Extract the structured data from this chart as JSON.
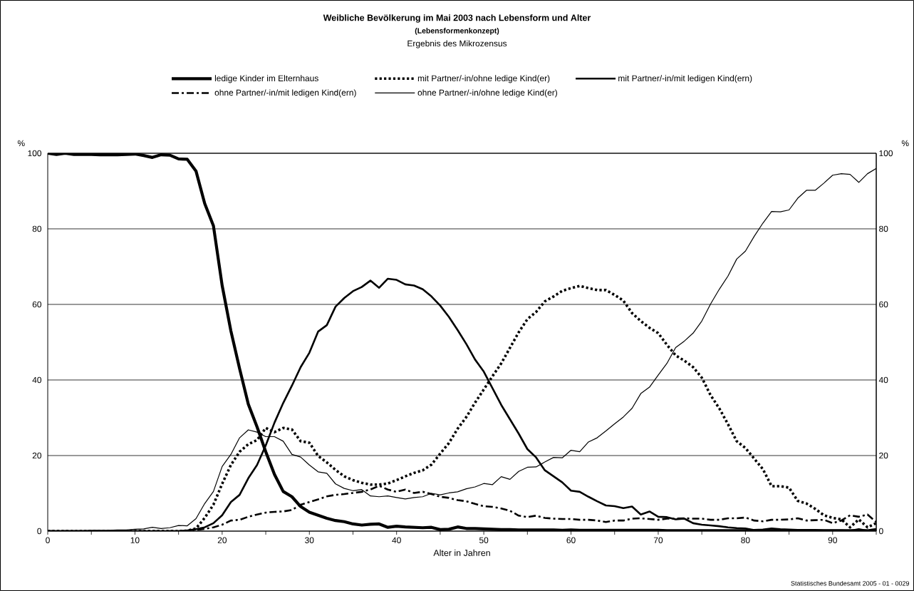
{
  "chart_data": {
    "type": "line",
    "title": "Weibliche Bevölkerung im Mai 2003 nach Lebensform und Alter",
    "subtitle": "(Lebensformenkonzept)",
    "annotations": [
      "Ergebnis des Mikrozensus",
      "Statistisches Bundesamt 2005 - 01 - 0029"
    ],
    "xlabel": "Alter in Jahren",
    "ylabel": "%",
    "y2label": "%",
    "xlim": [
      0,
      95
    ],
    "ylim": [
      0,
      100
    ],
    "y2lim": [
      0,
      100
    ],
    "xticks": [
      0,
      {
        "value": 5,
        "label": null
      },
      10,
      {
        "value": 15,
        "label": null
      },
      20,
      {
        "value": 25,
        "label": null
      },
      30,
      {
        "value": 35,
        "label": null
      },
      40,
      {
        "value": 45,
        "label": null
      },
      50,
      {
        "value": 55,
        "label": null
      },
      60,
      {
        "value": 65,
        "label": null
      },
      70,
      {
        "value": 75,
        "label": null
      },
      80,
      {
        "value": 85,
        "label": null
      },
      90,
      {
        "value": 95,
        "label": null
      }
    ],
    "yticks": [
      0,
      20,
      40,
      60,
      80,
      100
    ],
    "y2ticks": [
      0,
      20,
      40,
      60,
      80,
      100
    ],
    "grid": "y",
    "legend": "top",
    "marker": "none",
    "x": [
      0,
      1,
      2,
      3,
      4,
      5,
      6,
      7,
      8,
      9,
      10,
      11,
      12,
      13,
      14,
      15,
      16,
      17,
      18,
      19,
      20,
      21,
      22,
      23,
      24,
      25,
      26,
      27,
      28,
      29,
      30,
      31,
      32,
      33,
      34,
      35,
      36,
      37,
      38,
      39,
      40,
      41,
      42,
      43,
      44,
      45,
      46,
      47,
      48,
      49,
      50,
      51,
      52,
      53,
      54,
      55,
      56,
      57,
      58,
      59,
      60,
      61,
      62,
      63,
      64,
      65,
      66,
      67,
      68,
      69,
      70,
      71,
      72,
      73,
      74,
      75,
      76,
      77,
      78,
      79,
      80,
      81,
      82,
      83,
      84,
      85,
      86,
      87,
      88,
      89,
      90,
      91,
      92,
      93,
      94,
      95
    ],
    "series": [
      {
        "name": "ledige Kinder im Elternhaus",
        "color": "#000000",
        "line_style": "solid",
        "values": [
          100,
          99.7,
          100,
          99.7,
          99.7,
          99.7,
          99.6,
          99.6,
          99.6,
          99.7,
          99.8,
          99.4,
          98.9,
          99.6,
          99.5,
          98.5,
          98.4,
          95.3,
          86.7,
          80.8,
          65,
          53,
          43,
          33.6,
          27.6,
          21,
          15,
          10.5,
          9.1,
          6.5,
          5,
          4.2,
          3.4,
          2.8,
          2.5,
          1.9,
          1.6,
          1.8,
          1.9,
          1.0,
          1.3,
          1.1,
          1.0,
          0.9,
          1.0,
          0.4,
          0.5,
          1.1,
          0.7,
          0.7,
          0.6,
          0.5,
          0.4,
          0.4,
          0.3,
          0.3,
          0.3,
          0.3,
          0.3,
          0.2,
          0.3,
          0.2,
          0.2,
          0.2,
          0.2,
          0.2,
          0.2,
          0.2,
          0.2,
          0.2,
          0.2,
          0.1,
          0.1,
          0.1,
          0.1,
          0.1,
          0.1,
          0.1,
          0.1,
          0.1,
          0.1,
          0.1,
          0.1,
          0.1,
          0.1,
          0.1,
          0.1,
          0.1,
          0.1,
          0.1,
          0.1,
          0.1,
          0.1,
          0.1,
          0.1,
          0.4
        ]
      },
      {
        "name": "mit Partner/-in/ohne ledige Kind(er)",
        "color": "#000000",
        "line_style": "dotted",
        "values": [
          0,
          0,
          0,
          0,
          0,
          0,
          0,
          0,
          0,
          0,
          0,
          0,
          0,
          0,
          0,
          0,
          0.1,
          0.7,
          3.5,
          7,
          12.5,
          17.5,
          21,
          23,
          24.1,
          27.3,
          26.2,
          27.3,
          26.9,
          23.8,
          23.4,
          19.9,
          18.2,
          16.2,
          14.5,
          13.5,
          12.8,
          12.3,
          12.3,
          12.6,
          13.5,
          14.5,
          15.4,
          16.1,
          17.6,
          20.5,
          23.3,
          27.1,
          30.2,
          34.0,
          37.5,
          41.0,
          44.4,
          48.5,
          52.6,
          56.1,
          58.0,
          60.8,
          62.1,
          63.6,
          64.3,
          64.9,
          64.3,
          63.8,
          63.8,
          62.5,
          61.0,
          57.7,
          55.6,
          53.8,
          52.4,
          49.3,
          46.5,
          45.1,
          43.4,
          40.6,
          36,
          32.5,
          28.3,
          23.8,
          22,
          19.2,
          16.4,
          11.9,
          11.9,
          11.5,
          8.0,
          7.3,
          5.9,
          4.2,
          3.5,
          3.1,
          1.0,
          3.1,
          1.0,
          2.1
        ]
      },
      {
        "name": "mit Partner/-in/mit ledigen Kind(ern)",
        "color": "#000000",
        "line_style": "solid",
        "values": [
          0,
          0,
          0,
          0,
          0,
          0,
          0,
          0,
          0,
          0,
          0,
          0,
          0,
          0,
          0,
          0,
          0.2,
          0.5,
          1.0,
          2.1,
          4.2,
          7.7,
          9.6,
          14,
          17.5,
          22.7,
          28.7,
          33.9,
          38.5,
          43.4,
          47.2,
          52.8,
          54.5,
          59.4,
          61.7,
          63.5,
          64.6,
          66.3,
          64.4,
          66.8,
          66.5,
          65.3,
          65.0,
          64.0,
          62.1,
          59.7,
          56.7,
          53.2,
          49.5,
          45.4,
          42.2,
          37.8,
          33.4,
          29.6,
          25.8,
          21.7,
          19.5,
          16.1,
          14.5,
          12.9,
          10.7,
          10.4,
          9.1,
          7.9,
          6.8,
          6.6,
          6.1,
          6.5,
          4.4,
          5.2,
          3.8,
          3.7,
          3.1,
          3.3,
          2.1,
          1.7,
          1.5,
          1.3,
          1.0,
          0.8,
          0.7,
          0.3,
          0.4,
          0.7,
          0.5,
          0.4,
          0.3,
          0.3,
          0.3,
          0.2,
          0.2,
          0.2,
          0.1,
          0.5,
          0.1,
          0.3
        ]
      },
      {
        "name": "ohne Partner/-in/mit ledigen Kind(ern)",
        "color": "#000000",
        "line_style": "dashdot",
        "values": [
          0,
          0,
          0,
          0,
          0,
          0,
          0,
          0,
          0,
          0,
          0,
          0,
          0,
          0,
          0,
          0,
          0,
          0.3,
          0.6,
          1.0,
          1.7,
          2.8,
          3.0,
          3.8,
          4.4,
          4.9,
          5.1,
          5.2,
          5.6,
          7.0,
          7.7,
          8.4,
          9.2,
          9.6,
          9.8,
          10.1,
          10.4,
          11.0,
          12.0,
          11.0,
          10.4,
          11.0,
          10.1,
          10.4,
          9.8,
          9.1,
          8.8,
          8.2,
          7.9,
          7.2,
          6.6,
          6.4,
          6.0,
          5.4,
          4.1,
          3.7,
          4.1,
          3.5,
          3.3,
          3.2,
          3.2,
          3.0,
          3.0,
          2.8,
          2.4,
          2.8,
          2.8,
          3.3,
          3.4,
          3.2,
          3.0,
          3.3,
          3.3,
          3.4,
          3.3,
          3.3,
          3.0,
          3.0,
          3.4,
          3.4,
          3.6,
          2.8,
          2.6,
          3.0,
          3.0,
          3.1,
          3.4,
          2.8,
          2.9,
          3.0,
          2.1,
          2.8,
          4.2,
          3.8,
          4.4,
          2.4
        ]
      },
      {
        "name": "ohne Partner/-in/ohne ledige Kind(er)",
        "color": "#000000",
        "line_style": "solid",
        "values": [
          0.1,
          0.1,
          0.1,
          0.1,
          0.1,
          0.2,
          0.2,
          0.2,
          0.3,
          0.3,
          0.5,
          0.6,
          1.0,
          0.7,
          0.9,
          1.5,
          1.4,
          3.3,
          7.3,
          10.5,
          17.1,
          20.3,
          24.7,
          26.8,
          26.2,
          25.0,
          25.0,
          23.8,
          20.3,
          19.6,
          17.5,
          15.7,
          15.3,
          12.5,
          11.3,
          10.7,
          11.0,
          9.3,
          9.1,
          9.3,
          8.9,
          8.5,
          8.9,
          9.1,
          10.0,
          9.6,
          10.1,
          10.4,
          11.2,
          11.7,
          12.6,
          12.3,
          14.4,
          13.7,
          15.8,
          16.9,
          17.0,
          18.3,
          19.5,
          19.4,
          21.4,
          21.0,
          23.6,
          24.7,
          26.5,
          28.4,
          30.2,
          32.5,
          36.4,
          38.1,
          41.3,
          44.4,
          48.6,
          50.3,
          52.4,
          55.6,
          60.1,
          64.0,
          67.5,
          72.0,
          74.1,
          78.0,
          81.5,
          84.6,
          84.5,
          85.0,
          88.1,
          90.2,
          90.2,
          92.1,
          94.2,
          94.6,
          94.4,
          92.3,
          94.6,
          96.0
        ]
      }
    ]
  }
}
